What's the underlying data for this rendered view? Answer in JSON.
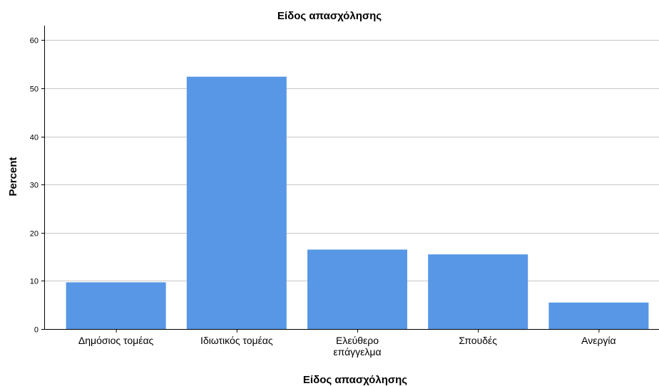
{
  "chart_data": {
    "type": "bar",
    "title": "Είδος απασχόλησης",
    "xlabel": "Είδος απασχόλησης",
    "ylabel": "Percent",
    "categories": [
      [
        "Δημόσιος τομέας"
      ],
      [
        "Ιδιωτικός τομέας"
      ],
      [
        "Ελεύθερο",
        "επάγγελμα"
      ],
      [
        "Σπουδές"
      ],
      [
        "Ανεργία"
      ]
    ],
    "values": [
      9.7,
      52.4,
      16.5,
      15.5,
      5.5
    ],
    "ylim": [
      0,
      63
    ],
    "yticks": [
      "0",
      "10",
      "20",
      "30",
      "40",
      "50",
      "60"
    ],
    "grid": true,
    "bar_color": "#5797e5",
    "grid_color": "#c6c6c6"
  }
}
